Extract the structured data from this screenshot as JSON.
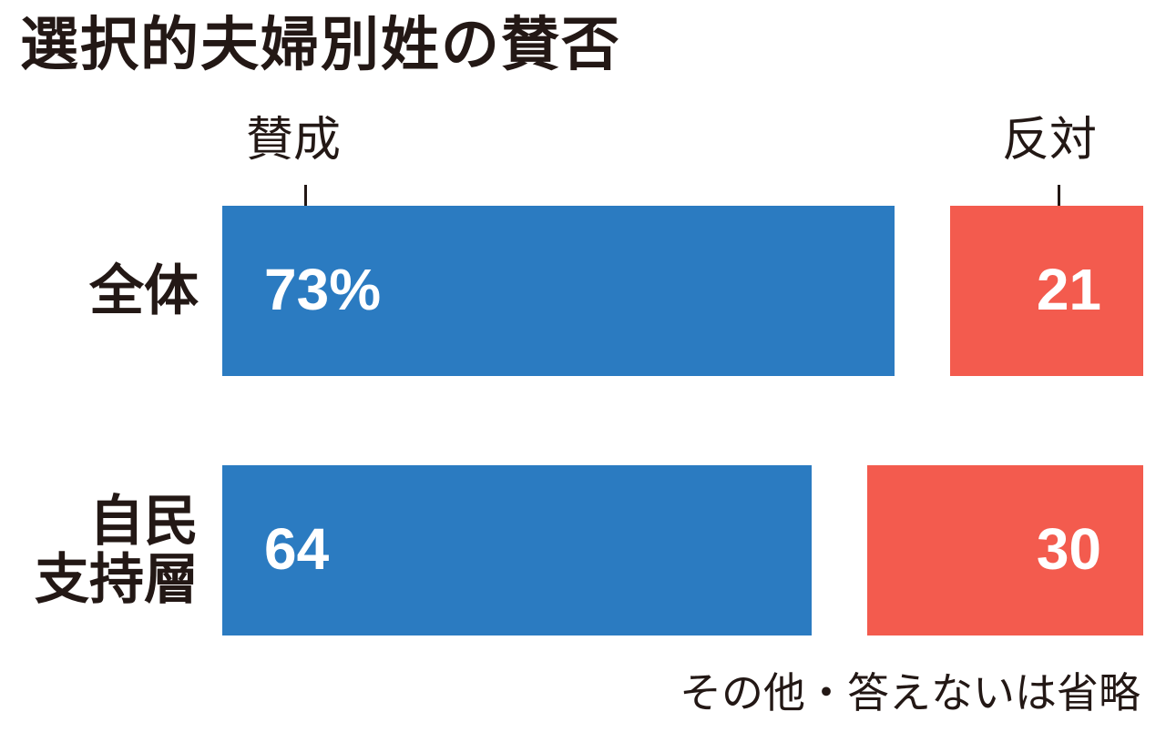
{
  "title": "選択的夫婦別姓の賛否",
  "note": "その他・答えないは省略",
  "colors": {
    "approve": "#2b7bc1",
    "oppose": "#f35b4e",
    "text": "#231815"
  },
  "chart_data": {
    "type": "bar",
    "stacked": true,
    "orientation": "horizontal",
    "categories": [
      "全体",
      "自民\n支持層"
    ],
    "series": [
      {
        "name": "賛成",
        "values": [
          73,
          64
        ],
        "labels": [
          "73%",
          "64"
        ]
      },
      {
        "name": "反対",
        "values": [
          21,
          30
        ],
        "labels": [
          "21",
          "30"
        ]
      }
    ],
    "omitted": "その他・答えない",
    "unit": "%"
  }
}
